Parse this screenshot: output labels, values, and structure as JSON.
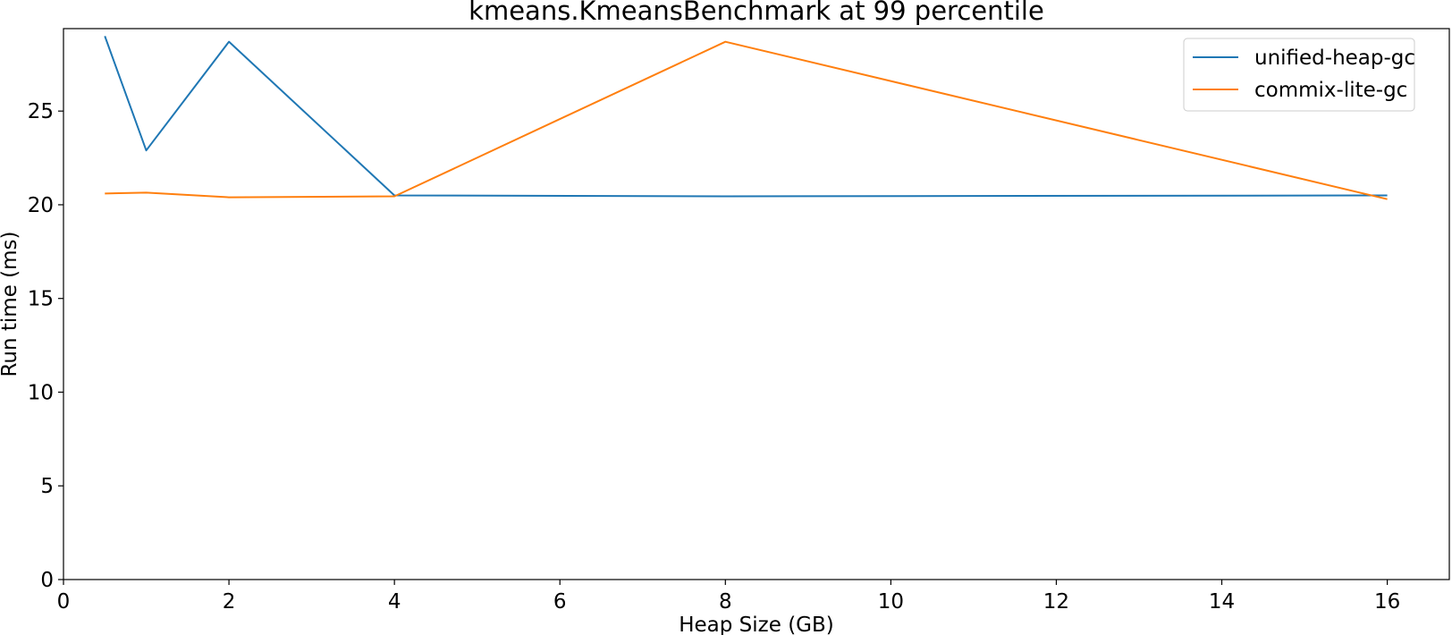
{
  "chart_data": {
    "type": "line",
    "title": "kmeans.KmeansBenchmark at 99 percentile",
    "xlabel": "Heap Size (GB)",
    "ylabel": "Run time (ms)",
    "xlim": [
      0,
      16.75
    ],
    "ylim": [
      0,
      29.4
    ],
    "xticks": [
      0,
      2,
      4,
      6,
      8,
      10,
      12,
      14,
      16
    ],
    "yticks": [
      0,
      5,
      10,
      15,
      20,
      25
    ],
    "grid": false,
    "legend_position": "top-right",
    "series": [
      {
        "name": "unified-heap-gc",
        "color": "#1f77b4",
        "x": [
          0.5,
          1,
          2,
          4,
          8,
          16
        ],
        "values": [
          29.0,
          22.9,
          28.7,
          20.5,
          20.45,
          20.5
        ]
      },
      {
        "name": "commix-lite-gc",
        "color": "#ff7f0e",
        "x": [
          0.5,
          1,
          2,
          4,
          8,
          16
        ],
        "values": [
          20.6,
          20.65,
          20.4,
          20.45,
          28.7,
          20.3
        ]
      }
    ]
  }
}
